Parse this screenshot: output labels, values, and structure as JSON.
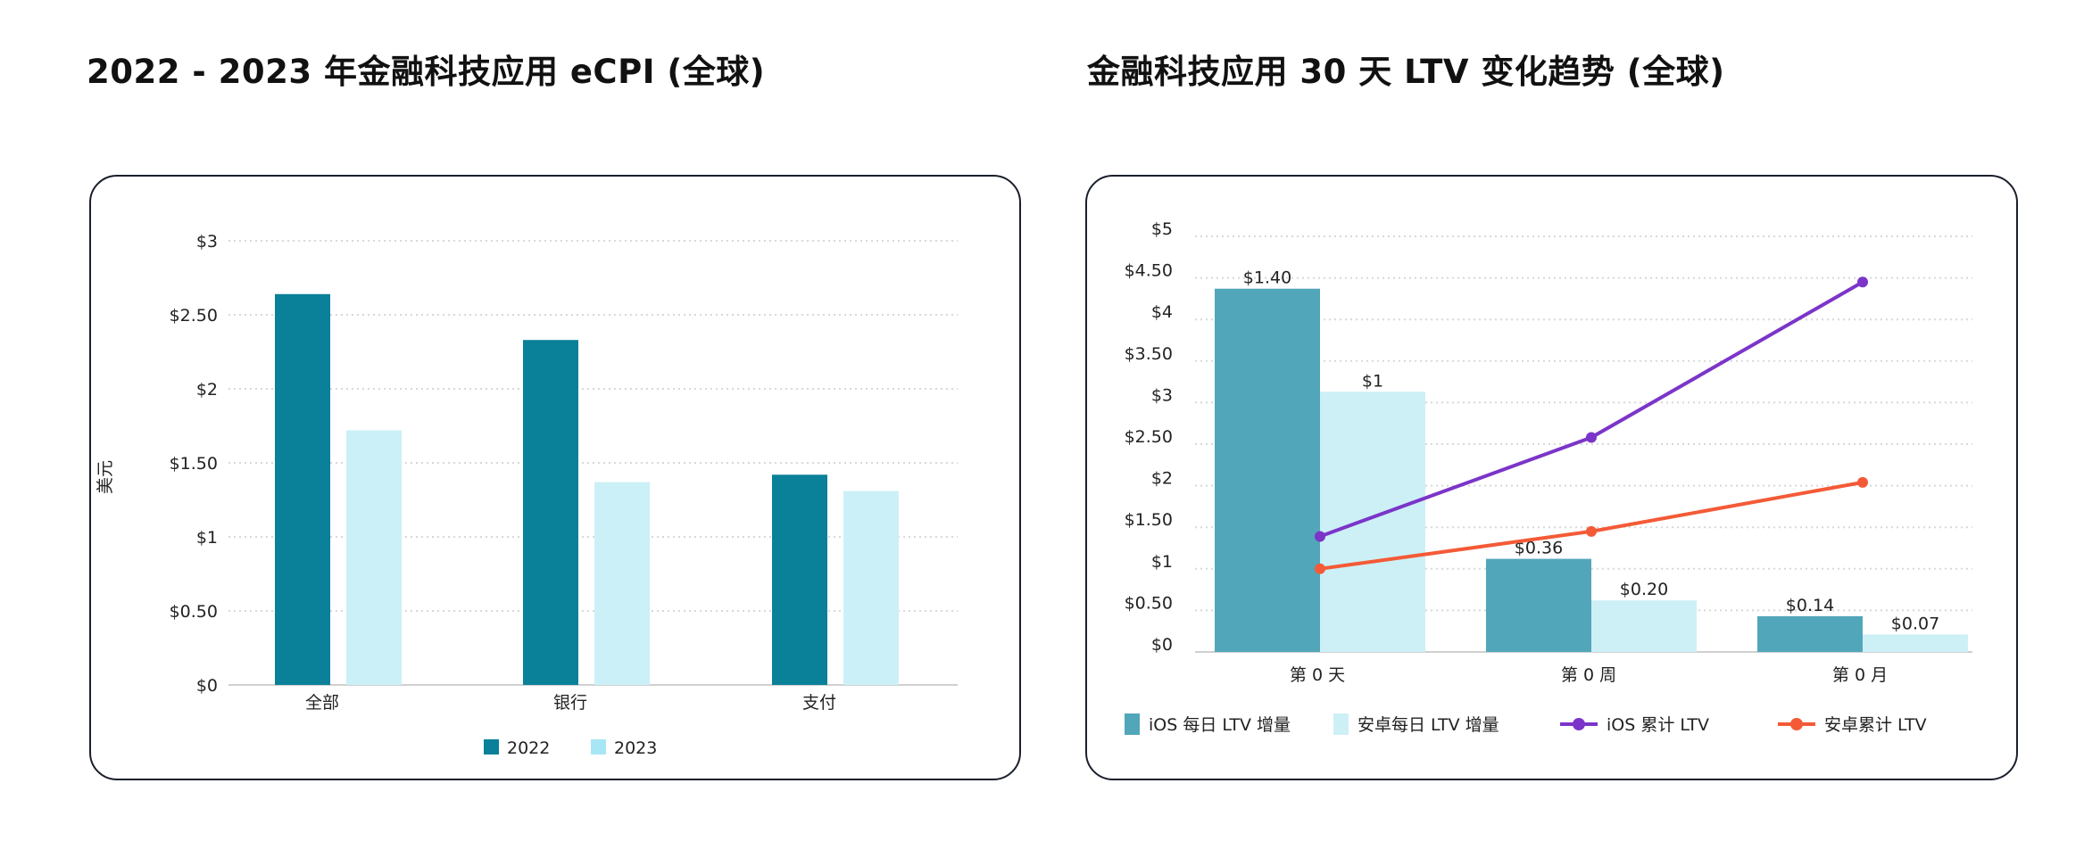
{
  "colors": {
    "c2022": "#0a8099",
    "c2023": "#ccf0f7",
    "c2023_legend": "#a6e6f5",
    "ios_bar": "#52a6ba",
    "android_bar": "#cdf0f7",
    "ios_line": "#7b35c9",
    "android_line": "#f45a37",
    "grid": "#d8d8d8",
    "axis": "#d0d0d0",
    "card_border": "#1a1f2c"
  },
  "chart_data": [
    {
      "type": "bar",
      "title": "2022 - 2023 年金融科技应用 eCPI (全球)",
      "ylabel": "美元",
      "xlabel": "",
      "ylim": [
        0,
        3
      ],
      "yticks": [
        0,
        0.5,
        1,
        1.5,
        2,
        2.5,
        3
      ],
      "ytick_labels": [
        "$0",
        "$0.50",
        "$1",
        "$1.50",
        "$2",
        "$2.50",
        "$3"
      ],
      "categories": [
        "全部",
        "银行",
        "支付"
      ],
      "series": [
        {
          "name": "2022",
          "values": [
            2.64,
            2.33,
            1.42
          ]
        },
        {
          "name": "2023",
          "values": [
            1.72,
            1.37,
            1.31
          ]
        }
      ],
      "legend": "bottom",
      "grid": true
    },
    {
      "type": "bar+line",
      "title": "金融科技应用 30 天 LTV 变化趋势 (全球)",
      "xlabel": "",
      "ylabel": "",
      "ylim": [
        0,
        5
      ],
      "yticks": [
        0,
        0.5,
        1,
        1.5,
        2,
        2.5,
        3,
        3.5,
        4,
        4.5,
        5
      ],
      "ytick_labels": [
        "$0",
        "$0.50",
        "$1",
        "$1.50",
        "$2",
        "$2.50",
        "$3",
        "$3.50",
        "$4",
        "$4.50",
        "$5"
      ],
      "categories": [
        "第 0 天",
        "第 0 周",
        "第 0 月"
      ],
      "bars": [
        {
          "name": "iOS 每日 LTV 增量",
          "labels": [
            "$1.40",
            "$0.36",
            "$0.14"
          ],
          "values": [
            1.4,
            0.36,
            0.14
          ],
          "plotted_height": [
            4.37,
            1.12,
            0.43
          ]
        },
        {
          "name": "安卓每日 LTV 增量",
          "labels": [
            "$1",
            "$0.20",
            "$0.07"
          ],
          "values": [
            1.0,
            0.2,
            0.07
          ],
          "plotted_height": [
            3.13,
            0.62,
            0.21
          ]
        }
      ],
      "lines": [
        {
          "name": "iOS 累计 LTV",
          "values": [
            1.39,
            2.58,
            4.45
          ]
        },
        {
          "name": "安卓累计 LTV",
          "values": [
            1.0,
            1.45,
            2.04
          ]
        }
      ],
      "legend": "bottom",
      "grid": true
    }
  ]
}
